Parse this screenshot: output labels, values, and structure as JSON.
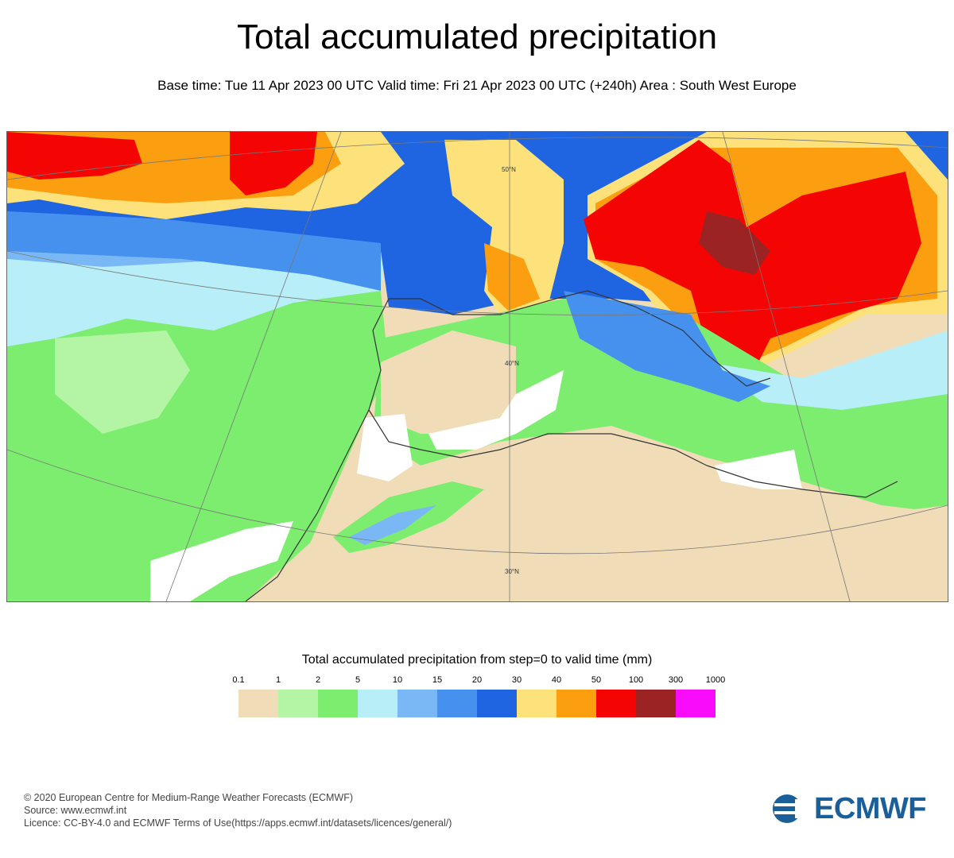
{
  "header": {
    "title": "Total accumulated precipitation",
    "subtitle": "Base time: Tue 11 Apr 2023 00 UTC Valid time: Fri 21 Apr 2023 00 UTC (+240h) Area : South West Europe"
  },
  "map": {
    "lat_labels": [
      "50°N",
      "40°N",
      "30°N"
    ]
  },
  "legend": {
    "title": "Total accumulated precipitation from step=0 to valid time (mm)",
    "labels": [
      "0.1",
      "1",
      "2",
      "5",
      "10",
      "15",
      "20",
      "30",
      "40",
      "50",
      "100",
      "300",
      "1000"
    ],
    "colors": [
      "#f1dcb8",
      "#b3f5a5",
      "#7ced6f",
      "#b8eef8",
      "#7ab8f5",
      "#4691ee",
      "#1f64e0",
      "#fde27b",
      "#fb9f10",
      "#f50404",
      "#9b2323",
      "#f80cf9"
    ]
  },
  "footer": {
    "line1": "© 2020 European Centre for Medium-Range Weather Forecasts (ECMWF)",
    "line2": "Source: www.ecmwf.int",
    "line3": "Licence: CC-BY-4.0 and ECMWF Terms of Use(https://apps.ecmwf.int/datasets/licences/general/)"
  },
  "logo": {
    "text": "ECMWF",
    "color": "#1a5f99"
  }
}
